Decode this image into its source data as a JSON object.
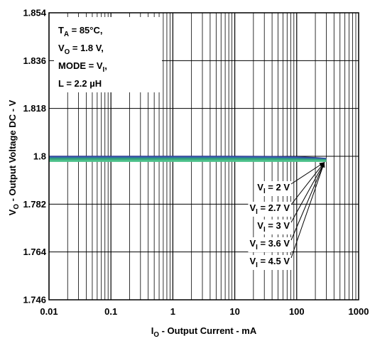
{
  "chart_data": {
    "type": "line",
    "xscale": "log",
    "xlim": [
      0.01,
      1000
    ],
    "ylim": [
      1.746,
      1.854
    ],
    "grid": true,
    "xticks": [
      "0.01",
      "0.1",
      "1",
      "10",
      "100",
      "1000"
    ],
    "yticks": [
      "1.746",
      "1.764",
      "1.782",
      "1.8",
      "1.818",
      "1.836",
      "1.854"
    ],
    "xlabel": {
      "main": "I",
      "sub": "O",
      "rest": " - Output Current - mA"
    },
    "ylabel": {
      "main": "V",
      "sub": "O",
      "rest": " - Output Voltage DC - V"
    },
    "conditions": [
      {
        "main": "T",
        "sub": "A",
        "rest": " = 85°C,"
      },
      {
        "main": "V",
        "sub": "O",
        "rest": " = 1.8 V,"
      },
      {
        "main": "MODE = V",
        "sub": "I",
        "rest": ","
      },
      {
        "main": "L = 2.2 µH",
        "sub": "",
        "rest": ""
      }
    ],
    "series": [
      {
        "legend": {
          "main": "V",
          "sub": "I",
          "rest": " = 2 V"
        },
        "color": "#2d3c8e",
        "x": [
          0.01,
          0.1,
          1,
          10,
          50,
          100,
          200,
          300
        ],
        "y": [
          1.7998,
          1.7998,
          1.7998,
          1.7998,
          1.7997,
          1.7996,
          1.7993,
          1.799
        ]
      },
      {
        "legend": {
          "main": "V",
          "sub": "I",
          "rest": " = 2.7 V"
        },
        "color": "#3d55b5",
        "x": [
          0.01,
          0.1,
          1,
          10,
          50,
          100,
          200,
          300
        ],
        "y": [
          1.7995,
          1.7995,
          1.7995,
          1.7995,
          1.7994,
          1.7993,
          1.799,
          1.7988
        ]
      },
      {
        "legend": {
          "main": "V",
          "sub": "I",
          "rest": " = 3 V"
        },
        "color": "#2a8c8c",
        "x": [
          0.01,
          0.1,
          1,
          10,
          50,
          100,
          200,
          300
        ],
        "y": [
          1.7992,
          1.7992,
          1.7992,
          1.7992,
          1.7991,
          1.799,
          1.7988,
          1.7986
        ]
      },
      {
        "legend": {
          "main": "V",
          "sub": "I",
          "rest": " = 3.6 V"
        },
        "color": "#3aa57a",
        "x": [
          0.01,
          0.1,
          1,
          10,
          50,
          100,
          200,
          300
        ],
        "y": [
          1.7988,
          1.7988,
          1.7988,
          1.7988,
          1.7987,
          1.7986,
          1.7985,
          1.7984
        ]
      },
      {
        "legend": {
          "main": "V",
          "sub": "I",
          "rest": " = 4.5 V"
        },
        "color": "#4cc08a",
        "x": [
          0.01,
          0.1,
          1,
          10,
          50,
          100,
          200,
          300
        ],
        "y": [
          1.7983,
          1.7983,
          1.7983,
          1.7983,
          1.7983,
          1.7983,
          1.7983,
          1.7983
        ]
      }
    ]
  }
}
